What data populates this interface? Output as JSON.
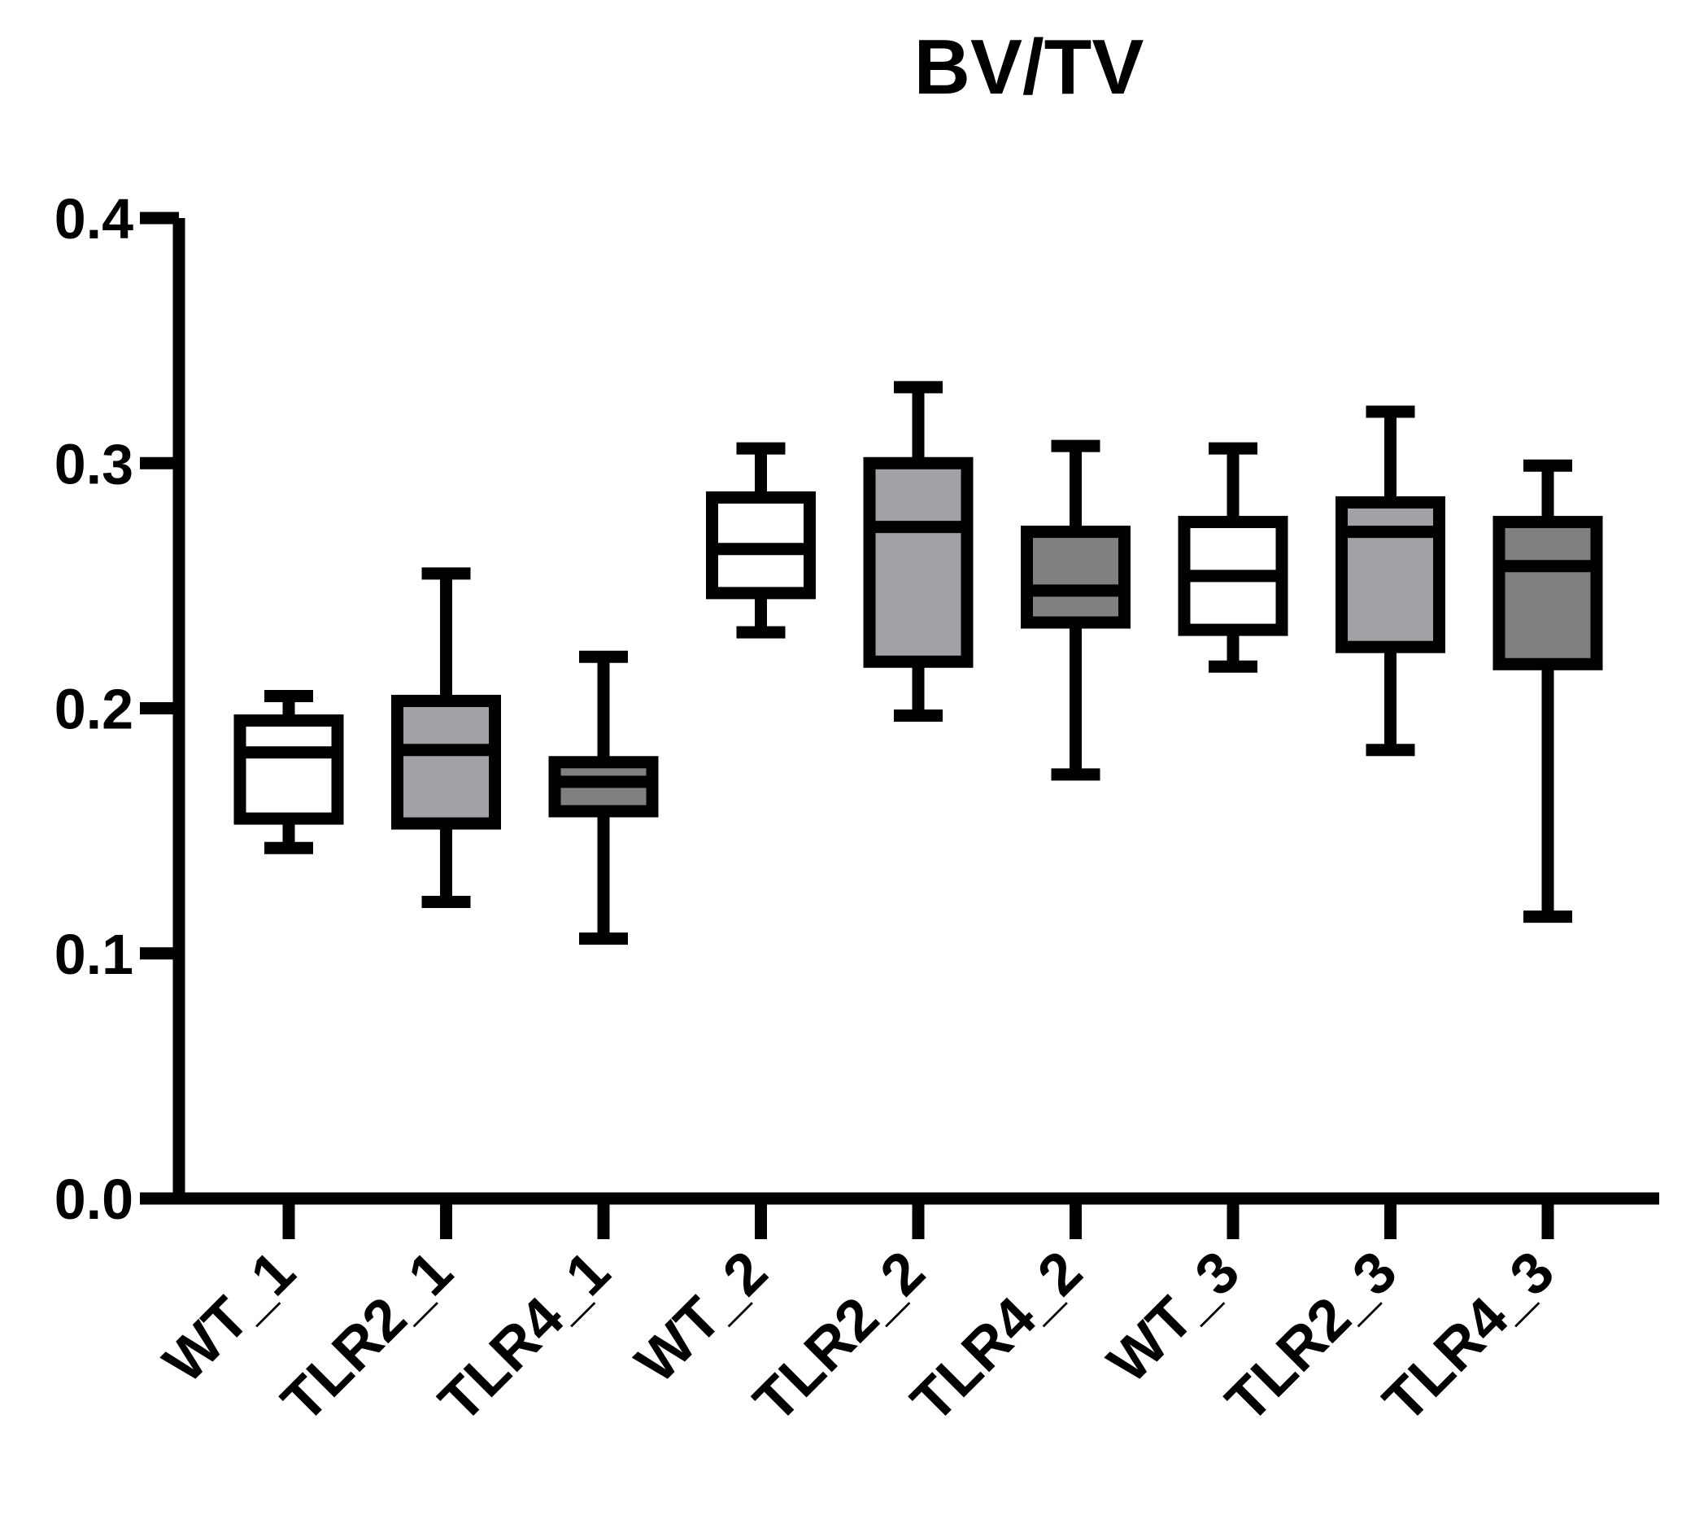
{
  "chart_data": {
    "type": "box",
    "title": "BV/TV",
    "xlabel": "",
    "ylabel": "",
    "ylim": [
      0,
      0.4
    ],
    "yticks": [
      0.0,
      0.1,
      0.2,
      0.3,
      0.4
    ],
    "ytick_labels": [
      "0.0",
      "0.1",
      "0.2",
      "0.3",
      "0.4"
    ],
    "grid": false,
    "legend": "none",
    "categories": [
      "WT_1",
      "TLR2_1",
      "TLR4_1",
      "WT_2",
      "TLR2_2",
      "TLR4_2",
      "WT_3",
      "TLR2_3",
      "TLR4_3"
    ],
    "boxes": [
      {
        "name": "WT_1",
        "min": 0.143,
        "q1": 0.155,
        "median": 0.182,
        "q3": 0.195,
        "max": 0.205,
        "fill": "#ffffff"
      },
      {
        "name": "TLR2_1",
        "min": 0.121,
        "q1": 0.153,
        "median": 0.183,
        "q3": 0.203,
        "max": 0.255,
        "fill": "#a3a1a6"
      },
      {
        "name": "TLR4_1",
        "min": 0.106,
        "q1": 0.158,
        "median": 0.17,
        "q3": 0.178,
        "max": 0.221,
        "fill": "#808080"
      },
      {
        "name": "WT_2",
        "min": 0.231,
        "q1": 0.247,
        "median": 0.265,
        "q3": 0.286,
        "max": 0.306,
        "fill": "#ffffff"
      },
      {
        "name": "TLR2_2",
        "min": 0.197,
        "q1": 0.219,
        "median": 0.274,
        "q3": 0.3,
        "max": 0.331,
        "fill": "#a3a1a6"
      },
      {
        "name": "TLR4_2",
        "min": 0.173,
        "q1": 0.235,
        "median": 0.248,
        "q3": 0.272,
        "max": 0.307,
        "fill": "#808080"
      },
      {
        "name": "WT_3",
        "min": 0.217,
        "q1": 0.232,
        "median": 0.254,
        "q3": 0.276,
        "max": 0.306,
        "fill": "#ffffff"
      },
      {
        "name": "TLR2_3",
        "min": 0.183,
        "q1": 0.225,
        "median": 0.272,
        "q3": 0.284,
        "max": 0.321,
        "fill": "#a3a1a6"
      },
      {
        "name": "TLR4_3",
        "min": 0.115,
        "q1": 0.218,
        "median": 0.258,
        "q3": 0.276,
        "max": 0.299,
        "fill": "#808080"
      }
    ]
  }
}
